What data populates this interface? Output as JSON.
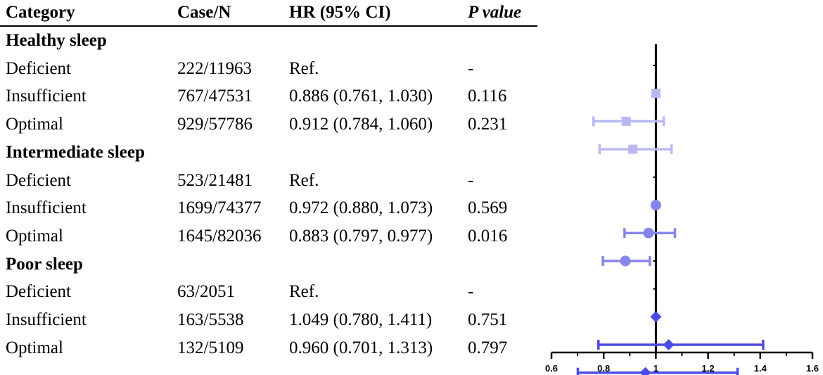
{
  "table": {
    "headers": {
      "category": "Category",
      "case_n": "Case/N",
      "hr": "HR (95% CI)",
      "p": "P value"
    },
    "rows": [
      {
        "kind": "group",
        "category": "Healthy sleep"
      },
      {
        "kind": "item",
        "category": "Deficient",
        "case_n": "222/11963",
        "hr": "Ref.",
        "p": "-"
      },
      {
        "kind": "item",
        "category": "Insufficient",
        "case_n": "767/47531",
        "hr": "0.886 (0.761, 1.030)",
        "p": "0.116"
      },
      {
        "kind": "item",
        "category": "Optimal",
        "case_n": "929/57786",
        "hr": "0.912 (0.784, 1.060)",
        "p": "0.231"
      },
      {
        "kind": "group",
        "category": "Intermediate sleep"
      },
      {
        "kind": "item",
        "category": "Deficient",
        "case_n": "523/21481",
        "hr": "Ref.",
        "p": "-"
      },
      {
        "kind": "item",
        "category": "Insufficient",
        "case_n": "1699/74377",
        "hr": "0.972 (0.880, 1.073)",
        "p": "0.569"
      },
      {
        "kind": "item",
        "category": "Optimal",
        "case_n": "1645/82036",
        "hr": "0.883 (0.797, 0.977)",
        "p": "0.016"
      },
      {
        "kind": "group",
        "category": "Poor sleep"
      },
      {
        "kind": "item",
        "category": "Deficient",
        "case_n": "63/2051",
        "hr": "Ref.",
        "p": "-"
      },
      {
        "kind": "item",
        "category": "Insufficient",
        "case_n": "163/5538",
        "hr": "1.049 (0.780, 1.411)",
        "p": "0.751"
      },
      {
        "kind": "item",
        "category": "Optimal",
        "case_n": "132/5109",
        "hr": "0.960 (0.701, 1.313)",
        "p": "0.797"
      }
    ]
  },
  "chart_data": {
    "type": "scatter",
    "subtype": "forest",
    "title": "",
    "xlabel": "",
    "ylabel": "",
    "xlim": [
      0.6,
      1.6
    ],
    "xticks": [
      "0.6",
      "0.8",
      "1",
      "1.2",
      "1.4",
      "1.6"
    ],
    "reference_line": 1,
    "grid": false,
    "legend": "none",
    "series": [
      {
        "group": "Healthy sleep",
        "marker": "square",
        "color": "#b9b9f2",
        "points": [
          {
            "label": "Deficient",
            "hr": 1.0,
            "lo": null,
            "hi": null
          },
          {
            "label": "Insufficient",
            "hr": 0.886,
            "lo": 0.761,
            "hi": 1.03
          },
          {
            "label": "Optimal",
            "hr": 0.912,
            "lo": 0.784,
            "hi": 1.06
          }
        ]
      },
      {
        "group": "Intermediate sleep",
        "marker": "circle",
        "color": "#8585ec",
        "points": [
          {
            "label": "Deficient",
            "hr": 1.0,
            "lo": null,
            "hi": null
          },
          {
            "label": "Insufficient",
            "hr": 0.972,
            "lo": 0.88,
            "hi": 1.073
          },
          {
            "label": "Optimal",
            "hr": 0.883,
            "lo": 0.797,
            "hi": 0.977
          }
        ]
      },
      {
        "group": "Poor sleep",
        "marker": "diamond",
        "color": "#4b4be8",
        "points": [
          {
            "label": "Deficient",
            "hr": 1.0,
            "lo": null,
            "hi": null
          },
          {
            "label": "Insufficient",
            "hr": 1.049,
            "lo": 0.78,
            "hi": 1.411
          },
          {
            "label": "Optimal",
            "hr": 0.96,
            "lo": 0.701,
            "hi": 1.313
          }
        ]
      }
    ]
  }
}
